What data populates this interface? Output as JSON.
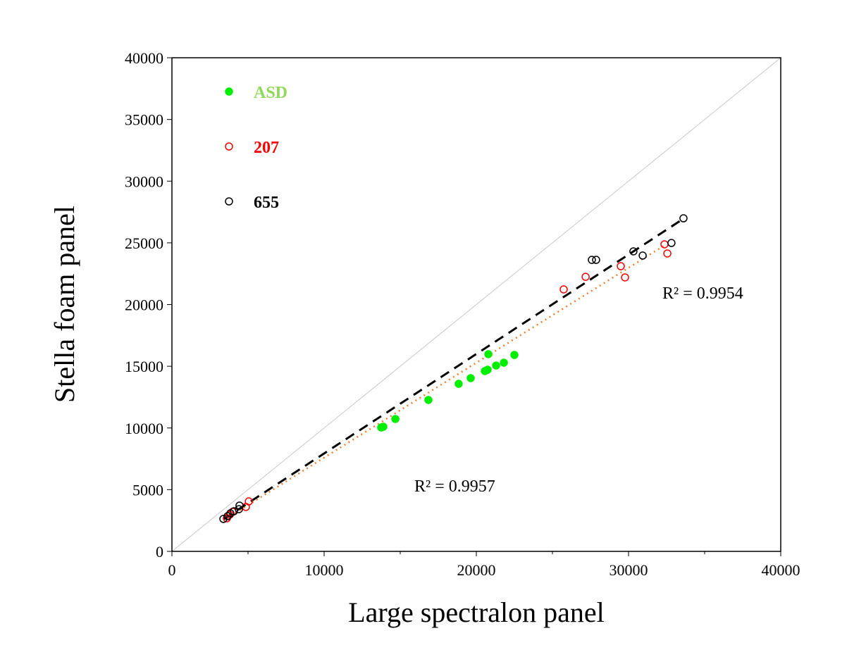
{
  "chart_data": {
    "type": "scatter",
    "xlabel": "Large spectralon panel",
    "ylabel": "Stella foam panel",
    "xlim": [
      0,
      40000
    ],
    "ylim": [
      0,
      40000
    ],
    "xticks": [
      0,
      10000,
      20000,
      30000,
      40000
    ],
    "yticks": [
      0,
      5000,
      10000,
      15000,
      20000,
      25000,
      30000,
      35000,
      40000
    ],
    "legend_position": "top-left",
    "series": [
      {
        "name": "ASD",
        "color": "#00ee00",
        "marker": "filled",
        "points": [
          [
            13750,
            10040
          ],
          [
            13890,
            10100
          ],
          [
            14680,
            10730
          ],
          [
            16850,
            12270
          ],
          [
            18840,
            13580
          ],
          [
            19630,
            14040
          ],
          [
            20560,
            14610
          ],
          [
            20740,
            14720
          ],
          [
            20790,
            15980
          ],
          [
            21300,
            15060
          ],
          [
            21810,
            15290
          ],
          [
            22500,
            15920
          ]
        ]
      },
      {
        "name": "207",
        "color": "#ff0000",
        "marker": "open",
        "points": [
          [
            3610,
            2680
          ],
          [
            3800,
            2970
          ],
          [
            3980,
            3200
          ],
          [
            4860,
            3600
          ],
          [
            5050,
            4050
          ],
          [
            25740,
            21230
          ],
          [
            27180,
            22250
          ],
          [
            29490,
            23110
          ],
          [
            29770,
            22200
          ],
          [
            32360,
            24880
          ],
          [
            32550,
            24140
          ]
        ],
        "fit": {
          "style": "dotted",
          "color": "#f08030",
          "from": [
            3900,
            2900
          ],
          "to": [
            32500,
            24900
          ],
          "r2_label": "R² = 0.9957"
        }
      },
      {
        "name": "655",
        "color": "#000000",
        "marker": "open",
        "points": [
          [
            3380,
            2630
          ],
          [
            3660,
            2850
          ],
          [
            3840,
            3080
          ],
          [
            4070,
            3250
          ],
          [
            4400,
            3420
          ],
          [
            4440,
            3710
          ],
          [
            27590,
            23620
          ],
          [
            27870,
            23620
          ],
          [
            30320,
            24310
          ],
          [
            30930,
            23970
          ],
          [
            32820,
            24990
          ],
          [
            33610,
            26990
          ]
        ],
        "fit": {
          "style": "dashed",
          "color": "#000000",
          "from": [
            3400,
            2620
          ],
          "to": [
            33600,
            26950
          ],
          "r2_label": "R² = 0.9954"
        }
      }
    ],
    "reference_line": "1:1"
  }
}
